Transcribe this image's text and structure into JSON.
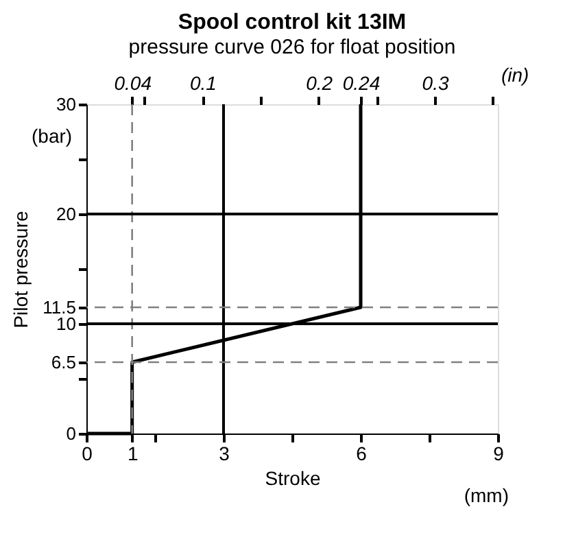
{
  "chart_data": {
    "type": "line",
    "title": "Spool control kit 13IM",
    "subtitle": "pressure curve 026 for float position",
    "xlabel": "Stroke",
    "ylabel": "Pilot pressure",
    "x2label": "(in)",
    "annotations": [
      "(bar)",
      "(mm)"
    ],
    "x": [
      0,
      1,
      1,
      6,
      6
    ],
    "series": [
      {
        "color": "#000000",
        "values": [
          0,
          0,
          6.5,
          11.5,
          30
        ]
      }
    ],
    "xlim": [
      0,
      9
    ],
    "xticks": [
      0,
      1,
      {
        "value": 1.5,
        "label": null
      },
      3,
      {
        "value": 4.5,
        "label": null
      },
      6,
      {
        "value": 7.5,
        "label": null
      },
      9
    ],
    "ylim": [
      0,
      30
    ],
    "yticks": [
      0,
      {
        "value": 5,
        "label": null
      },
      6.5,
      10,
      11.5,
      {
        "value": 15,
        "label": null
      },
      20,
      {
        "value": 25,
        "label": null
      },
      30
    ],
    "x2lim": [
      0,
      0.3543
    ],
    "x2ticks": [
      {
        "value": 0.0394,
        "label": "0.04"
      },
      {
        "value": 0.05,
        "label": null
      },
      0.1,
      {
        "value": 0.15,
        "label": null
      },
      0.2,
      {
        "value": 0.2362,
        "label": "0.24"
      },
      {
        "value": 0.25,
        "label": null
      },
      0.3,
      {
        "value": 0.35,
        "label": null
      }
    ],
    "ref_lines": [
      {
        "axis": "x",
        "value": 3,
        "color": "#000000",
        "line_style": "solid"
      },
      {
        "axis": "x",
        "value": 1,
        "color": "#808080",
        "line_style": "dashed"
      },
      {
        "axis": "y",
        "value": 10,
        "color": "#000000",
        "line_style": "solid"
      },
      {
        "axis": "y",
        "value": 20,
        "color": "#000000",
        "line_style": "solid"
      },
      {
        "axis": "y",
        "value": 6.5,
        "color": "#808080",
        "line_style": "dashed"
      },
      {
        "axis": "y",
        "value": 11.5,
        "color": "#808080",
        "line_style": "dashed"
      }
    ],
    "grid": false,
    "marker": "none",
    "line_style": "solid"
  }
}
